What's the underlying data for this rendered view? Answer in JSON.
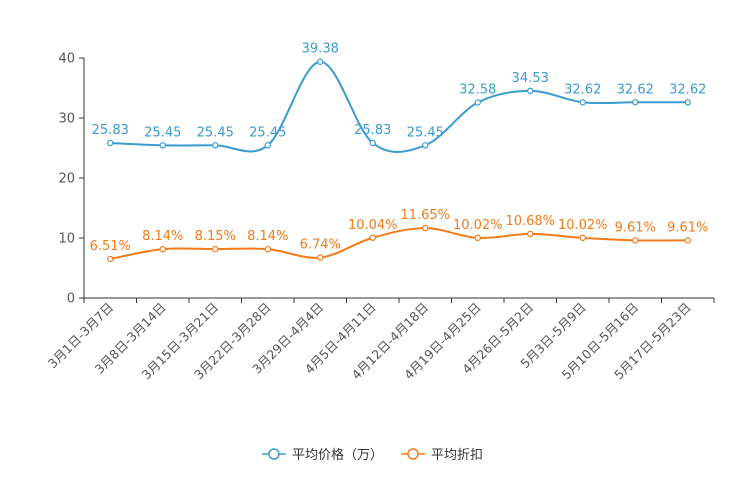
{
  "chart_data": {
    "type": "line",
    "title": "",
    "xlabel": "",
    "ylabel": "",
    "ylim": [
      0,
      40
    ],
    "yticks": [
      "0",
      "10",
      "20",
      "30",
      "40"
    ],
    "categories": [
      "3月1日-3月7日",
      "3月8日-3月14日",
      "3月15日-3月21日",
      "3月22日-3月28日",
      "3月29日-4月4日",
      "4月5日-4月11日",
      "4月12日-4月18日",
      "4月19日-4月25日",
      "4月26日-5月2日",
      "5月3日-5月9日",
      "5月10日-5月16日",
      "5月17日-5月23日"
    ],
    "series": [
      {
        "name": "平均价格（万）",
        "color": "#3a9bd0",
        "values": [
          25.83,
          25.45,
          25.45,
          25.45,
          39.38,
          25.83,
          25.45,
          32.58,
          34.53,
          32.62,
          32.62,
          32.62
        ],
        "labels": [
          "25.83",
          "25.45",
          "25.45",
          "25.45",
          "39.38",
          "25.83",
          "25.45",
          "32.58",
          "34.53",
          "32.62",
          "32.62",
          "32.62"
        ]
      },
      {
        "name": "平均折扣",
        "color": "#f27b1a",
        "values": [
          6.51,
          8.14,
          8.15,
          8.14,
          6.74,
          10.04,
          11.65,
          10.02,
          10.68,
          10.02,
          9.61,
          9.61
        ],
        "labels": [
          "6.51%",
          "8.14%",
          "8.15%",
          "8.14%",
          "6.74%",
          "10.04%",
          "11.65%",
          "10.02%",
          "10.68%",
          "10.02%",
          "9.61%",
          "9.61%"
        ]
      }
    ],
    "legend_position": "bottom-center"
  }
}
